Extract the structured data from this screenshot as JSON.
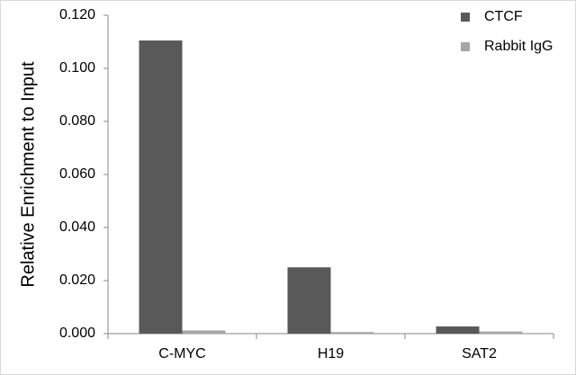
{
  "chart_data": {
    "type": "bar",
    "y_label": "Relative Enrichment to Input",
    "categories": [
      "C-MYC",
      "H19",
      "SAT2"
    ],
    "series": [
      {
        "name": "CTCF",
        "color": "#595959",
        "values": [
          0.1105,
          0.025,
          0.0027
        ]
      },
      {
        "name": "Rabbit IgG",
        "color": "#a6a6a6",
        "values": [
          0.0012,
          0.0006,
          0.0008
        ]
      }
    ],
    "ylim": [
      0,
      0.12
    ],
    "yticks": [
      {
        "value": 0,
        "label": "0.000"
      },
      {
        "value": 0.02,
        "label": "0.020"
      },
      {
        "value": 0.04,
        "label": "0.040"
      },
      {
        "value": 0.06,
        "label": "0.060"
      },
      {
        "value": 0.08,
        "label": "0.080"
      },
      {
        "value": 0.1,
        "label": "0.100"
      },
      {
        "value": 0.12,
        "label": "0.120"
      }
    ],
    "grid": false,
    "legend": "top-right"
  }
}
